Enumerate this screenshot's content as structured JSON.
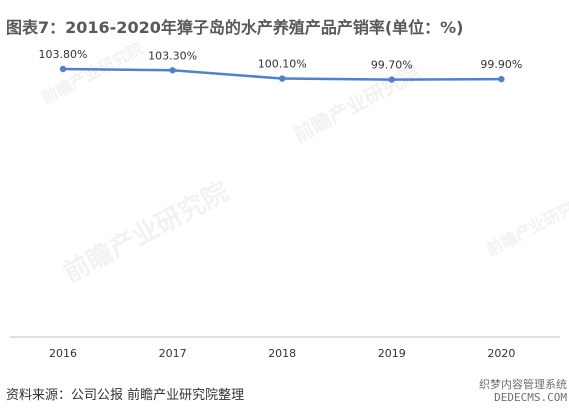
{
  "title": "图表7：2016-2020年獐子岛的水产养殖产品产销率(单位：%)",
  "source": "资料来源：公司公报 前瞻产业研究院整理",
  "watermark": {
    "text": "前瞻产业研究院",
    "corner_line1": "织梦内容管理系统",
    "corner_line2": "DEDECMS.COM"
  },
  "colors": {
    "line": "#4f81d0",
    "title": "#595959",
    "axis": "#bfbfbf"
  },
  "chart_data": {
    "type": "line",
    "categories": [
      "2016",
      "2017",
      "2018",
      "2019",
      "2020"
    ],
    "series": [
      {
        "values": [
          103.8,
          103.3,
          100.1,
          99.7,
          99.9
        ],
        "labels": [
          "103.80%",
          "103.30%",
          "100.10%",
          "99.70%",
          "99.90%"
        ]
      }
    ],
    "ylim": [
      0,
      110
    ],
    "grid": false,
    "legend": "none"
  }
}
